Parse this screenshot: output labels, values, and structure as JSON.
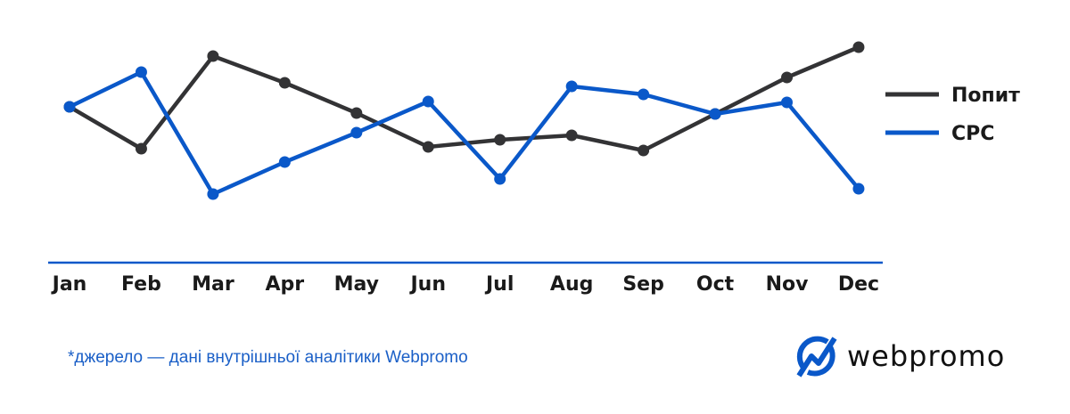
{
  "chart_data": {
    "type": "line",
    "title": "",
    "xlabel": "",
    "ylabel": "",
    "categories": [
      "Jan",
      "Feb",
      "Mar",
      "Apr",
      "May",
      "Jun",
      "Jul",
      "Aug",
      "Sep",
      "Oct",
      "Nov",
      "Dec"
    ],
    "ylim": [
      0,
      250
    ],
    "y_axis_labels_shown": false,
    "grid": false,
    "legend_position": "right",
    "series": [
      {
        "name": "Попит",
        "color": "#333335",
        "values": [
          175,
          128,
          232,
          202,
          168,
          130,
          138,
          143,
          126,
          167,
          208,
          242
        ]
      },
      {
        "name": "CPC",
        "color": "#0a58c9",
        "values": [
          175,
          214,
          77,
          113,
          146,
          181,
          94,
          198,
          189,
          167,
          180,
          83
        ]
      }
    ],
    "axis_color": "#0a58c9"
  },
  "footnote": "*джерело — дані внутрішньої аналітики Webpromo",
  "logo": {
    "text": "webpromo",
    "color": "#0a58c9",
    "icon": "chart-arrow-circle-icon"
  }
}
